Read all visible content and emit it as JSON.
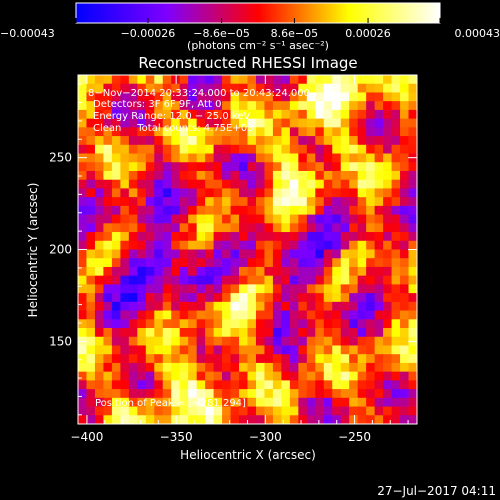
{
  "chart_data": {
    "type": "heatmap",
    "title": "Reconstructed RHESSI Image",
    "xlabel": "Heliocentric X (arcsec)",
    "ylabel": "Heliocentric Y (arcsec)",
    "xlim": [
      -405,
      -215
    ],
    "ylim": [
      105,
      295
    ],
    "x_ticks": [
      -400,
      -350,
      -300,
      -250
    ],
    "y_ticks": [
      150,
      200,
      250
    ],
    "x_tick_labels": [
      "−400",
      "−350",
      "−300",
      "−250"
    ],
    "y_tick_labels": [
      "150",
      "200",
      "250"
    ],
    "colorbar": {
      "range": [
        -0.00043,
        0.00043
      ],
      "ticks": [
        -0.00043,
        -0.00026,
        -8.6e-05,
        8.6e-05,
        0.00026,
        0.00043
      ],
      "tick_labels": [
        "−0.00043",
        "−0.00026",
        "−8.6e−05",
        "8.6e−05",
        "0.00026",
        "0.00043"
      ],
      "unit_label": "(photons cm⁻² s⁻¹ asec⁻²)",
      "colors": [
        "#0000ff",
        "#7f00ff",
        "#ff0000",
        "#ffff00",
        "#ffffff"
      ]
    },
    "annotations": {
      "time": "8−Nov−2014 20:33:24.000 to 20:43:24.000",
      "detectors": "Detectors: 3F 6F 9F, Att 0",
      "energy": "Energy Range: 12.0 − 25.0 keV",
      "clean": "Clean     Total counts: 4.75E+03",
      "peak": "Position of Peak = [−281,294]"
    },
    "peak": [
      -281,
      294
    ],
    "image_grid": [
      40,
      40
    ],
    "footer_date": "27−Jul−2017 04:11"
  }
}
